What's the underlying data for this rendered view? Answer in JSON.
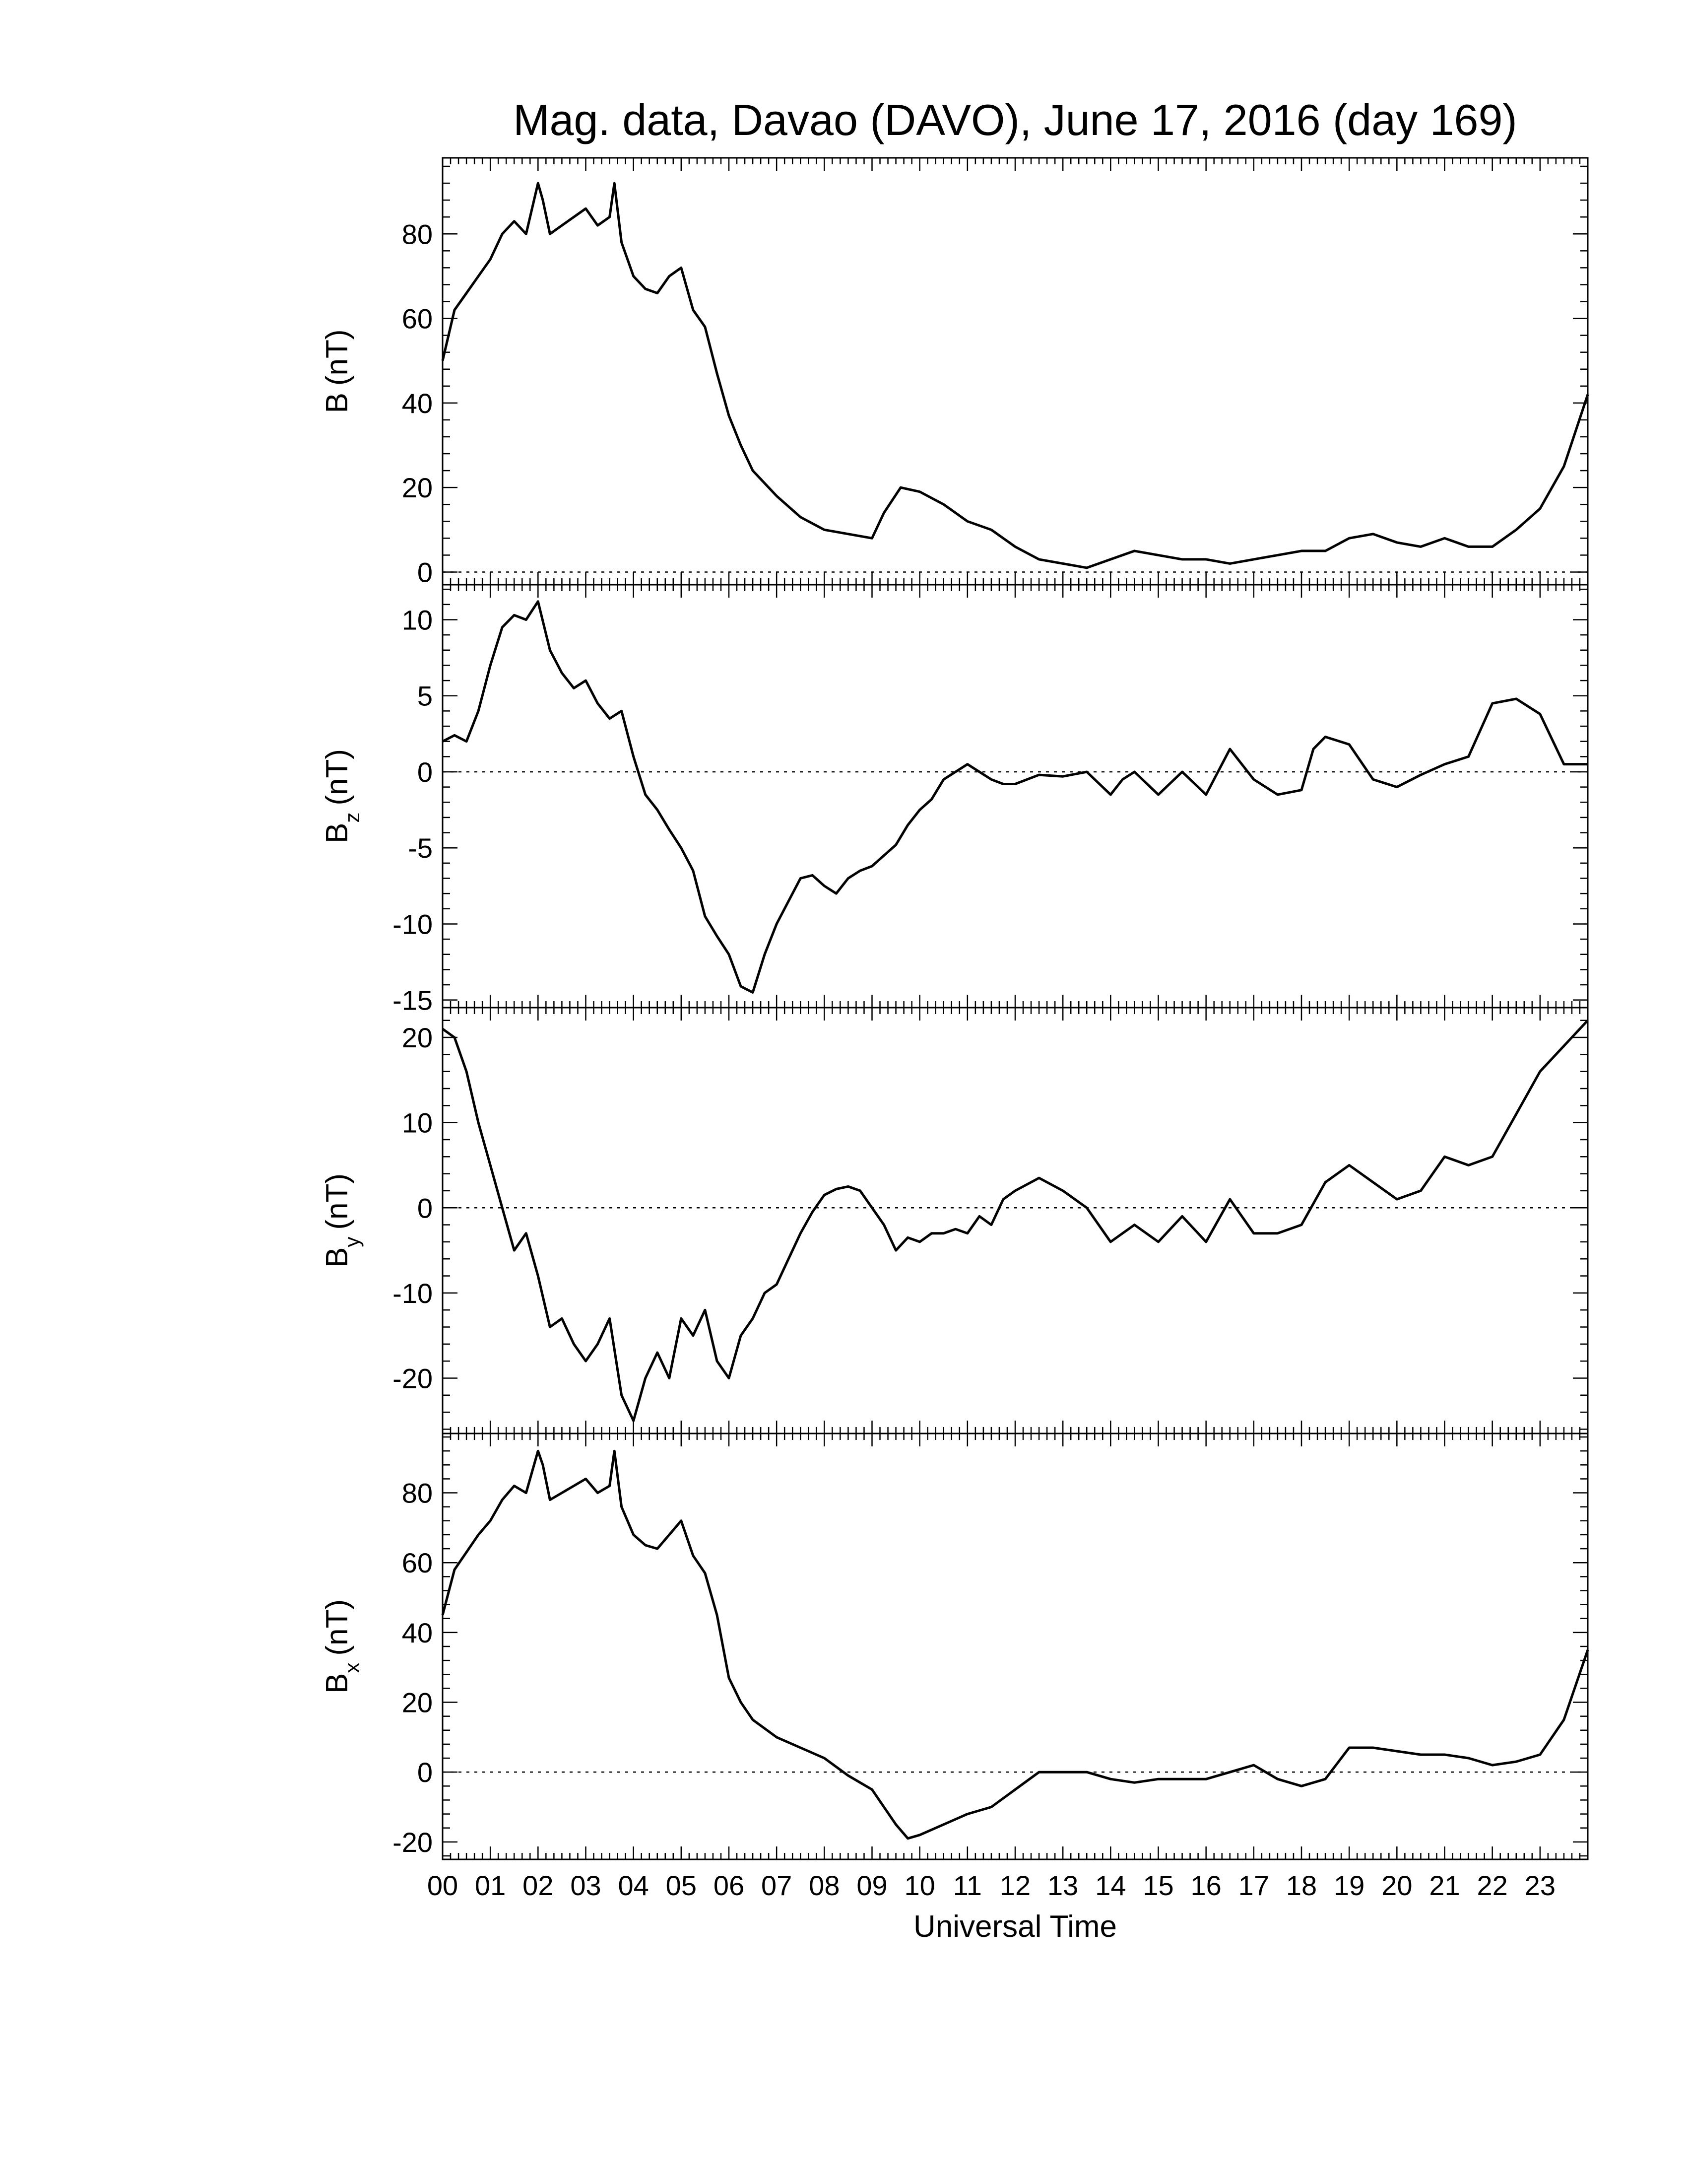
{
  "figure": {
    "title": "Mag. data, Davao (DAVO), June 17, 2016 (day 169)",
    "xlabel": "Universal Time",
    "x_tick_labels": [
      "00",
      "01",
      "02",
      "03",
      "04",
      "05",
      "06",
      "07",
      "08",
      "09",
      "10",
      "11",
      "12",
      "13",
      "14",
      "15",
      "16",
      "17",
      "18",
      "19",
      "20",
      "21",
      "22",
      "23"
    ]
  },
  "colors": {
    "trace": "#000000",
    "background": "#ffffff",
    "zero_line": "#000000"
  },
  "chart_data": [
    {
      "type": "line",
      "ylabel_main": "B",
      "ylabel_sub": "",
      "ylabel_unit": "(nT)",
      "xlim": [
        0,
        24
      ],
      "ylim": [
        -3,
        98
      ],
      "yticks": [
        0,
        20,
        40,
        60,
        80
      ],
      "zero_line": true,
      "x": [
        0,
        0.25,
        0.5,
        0.75,
        1,
        1.25,
        1.5,
        1.75,
        2,
        2.1,
        2.25,
        2.5,
        2.75,
        3,
        3.25,
        3.5,
        3.6,
        3.75,
        4,
        4.25,
        4.5,
        4.75,
        5,
        5.25,
        5.5,
        5.75,
        6,
        6.25,
        6.5,
        7,
        7.5,
        8,
        8.5,
        9,
        9.25,
        9.6,
        10,
        10.5,
        11,
        11.5,
        12,
        12.5,
        13,
        13.5,
        14,
        14.5,
        15,
        15.5,
        16,
        16.5,
        17,
        17.5,
        18,
        18.5,
        19,
        19.5,
        20,
        20.5,
        21,
        21.5,
        22,
        22.5,
        23,
        23.5,
        24
      ],
      "values": [
        50,
        62,
        66,
        70,
        74,
        80,
        83,
        80,
        92,
        88,
        80,
        82,
        84,
        86,
        82,
        84,
        92,
        78,
        70,
        67,
        66,
        70,
        72,
        62,
        58,
        47,
        37,
        30,
        24,
        18,
        13,
        10,
        9,
        8,
        14,
        20,
        19,
        16,
        12,
        10,
        6,
        3,
        2,
        1,
        3,
        5,
        4,
        3,
        3,
        2,
        3,
        4,
        5,
        5,
        8,
        9,
        7,
        6,
        8,
        6,
        6,
        10,
        15,
        25,
        42
      ]
    },
    {
      "type": "line",
      "ylabel_main": "B",
      "ylabel_sub": "z",
      "ylabel_unit": "(nT)",
      "xlim": [
        0,
        24
      ],
      "ylim": [
        -15.5,
        12.3
      ],
      "yticks": [
        -15,
        -10,
        -5,
        0,
        5,
        10
      ],
      "zero_line": true,
      "x": [
        0,
        0.25,
        0.5,
        0.75,
        1,
        1.25,
        1.5,
        1.75,
        2,
        2.25,
        2.5,
        2.75,
        3,
        3.25,
        3.5,
        3.75,
        4,
        4.25,
        4.5,
        4.75,
        5,
        5.25,
        5.5,
        5.75,
        6,
        6.25,
        6.5,
        6.75,
        7,
        7.25,
        7.5,
        7.75,
        8,
        8.25,
        8.5,
        8.75,
        9,
        9.25,
        9.5,
        9.75,
        10,
        10.25,
        10.5,
        10.75,
        11,
        11.25,
        11.5,
        11.75,
        12,
        12.5,
        13,
        13.5,
        14,
        14.25,
        14.5,
        15,
        15.5,
        16,
        16.5,
        17,
        17.5,
        18,
        18.25,
        18.5,
        19,
        19.5,
        20,
        20.5,
        21,
        21.5,
        22,
        22.5,
        23,
        23.5,
        24
      ],
      "values": [
        2,
        2.4,
        2,
        4,
        7,
        9.5,
        10.3,
        10,
        11.2,
        8,
        6.5,
        5.5,
        6,
        4.5,
        3.5,
        4,
        1,
        -1.5,
        -2.5,
        -3.8,
        -5,
        -6.5,
        -9.5,
        -10.8,
        -12,
        -14.1,
        -14.5,
        -12,
        -10,
        -8.5,
        -7,
        -6.8,
        -7.5,
        -8,
        -7,
        -6.5,
        -6.2,
        -5.5,
        -4.8,
        -3.5,
        -2.5,
        -1.8,
        -0.5,
        0,
        0.5,
        0,
        -0.5,
        -0.8,
        -0.8,
        -0.2,
        -0.3,
        0,
        -1.5,
        -0.5,
        0,
        -1.5,
        0,
        -1.5,
        1.5,
        -0.5,
        -1.5,
        -1.2,
        1.5,
        2.3,
        1.8,
        -0.5,
        -1,
        -0.2,
        0.5,
        1,
        4.5,
        4.8,
        3.8,
        0.5,
        0.5
      ]
    },
    {
      "type": "line",
      "ylabel_main": "B",
      "ylabel_sub": "y",
      "ylabel_unit": "(nT)",
      "xlim": [
        0,
        24
      ],
      "ylim": [
        -26.5,
        23.5
      ],
      "yticks": [
        -20,
        -10,
        0,
        10,
        20
      ],
      "zero_line": true,
      "x": [
        0,
        0.25,
        0.5,
        0.75,
        1,
        1.25,
        1.5,
        1.75,
        2,
        2.25,
        2.5,
        2.75,
        3,
        3.25,
        3.5,
        3.75,
        4,
        4.25,
        4.5,
        4.75,
        5,
        5.25,
        5.5,
        5.75,
        6,
        6.25,
        6.5,
        6.75,
        7,
        7.25,
        7.5,
        7.75,
        8,
        8.25,
        8.5,
        8.75,
        9,
        9.25,
        9.5,
        9.75,
        10,
        10.25,
        10.5,
        10.75,
        11,
        11.25,
        11.5,
        11.75,
        12,
        12.5,
        13,
        13.5,
        14,
        14.5,
        15,
        15.5,
        16,
        16.5,
        17,
        17.5,
        18,
        18.5,
        19,
        19.5,
        20,
        20.5,
        21,
        21.5,
        22,
        22.5,
        23,
        23.5,
        24
      ],
      "values": [
        21,
        20,
        16,
        10,
        5,
        0,
        -5,
        -3,
        -8,
        -14,
        -13,
        -16,
        -18,
        -16,
        -13,
        -22,
        -25,
        -20,
        -17,
        -20,
        -13,
        -15,
        -12,
        -18,
        -20,
        -15,
        -13,
        -10,
        -9,
        -6,
        -3,
        -0.5,
        1.5,
        2.2,
        2.5,
        2,
        0,
        -2,
        -5,
        -3.5,
        -4,
        -3,
        -3,
        -2.5,
        -3,
        -1,
        -2,
        1,
        2,
        3.5,
        2,
        0,
        -4,
        -2,
        -4,
        -1,
        -4,
        1,
        -3,
        -3,
        -2,
        3,
        5,
        3,
        1,
        2,
        6,
        5,
        6,
        11,
        16,
        19,
        22
      ]
    },
    {
      "type": "line",
      "ylabel_main": "B",
      "ylabel_sub": "x",
      "ylabel_unit": "(nT)",
      "xlim": [
        0,
        24
      ],
      "ylim": [
        -25,
        97
      ],
      "yticks": [
        -20,
        0,
        20,
        40,
        60,
        80
      ],
      "zero_line": true,
      "x": [
        0,
        0.25,
        0.5,
        0.75,
        1,
        1.25,
        1.5,
        1.75,
        2,
        2.1,
        2.25,
        2.5,
        2.75,
        3,
        3.25,
        3.5,
        3.6,
        3.75,
        4,
        4.25,
        4.5,
        4.75,
        5,
        5.25,
        5.5,
        5.75,
        6,
        6.25,
        6.5,
        7,
        7.5,
        8,
        8.5,
        9,
        9.25,
        9.5,
        9.75,
        10,
        10.5,
        11,
        11.5,
        12,
        12.5,
        13,
        13.5,
        14,
        14.5,
        15,
        15.5,
        16,
        16.5,
        17,
        17.5,
        18,
        18.5,
        19,
        19.5,
        20,
        20.5,
        21,
        21.5,
        22,
        22.5,
        23,
        23.5,
        24
      ],
      "values": [
        45,
        58,
        63,
        68,
        72,
        78,
        82,
        80,
        92,
        88,
        78,
        80,
        82,
        84,
        80,
        82,
        92,
        76,
        68,
        65,
        64,
        68,
        72,
        62,
        57,
        45,
        27,
        20,
        15,
        10,
        7,
        4,
        -1,
        -5,
        -10,
        -15,
        -19,
        -18,
        -15,
        -12,
        -10,
        -5,
        0,
        0,
        0,
        -2,
        -3,
        -2,
        -2,
        -2,
        0,
        2,
        -2,
        -4,
        -2,
        7,
        7,
        6,
        5,
        5,
        4,
        2,
        3,
        5,
        15,
        35
      ]
    }
  ]
}
